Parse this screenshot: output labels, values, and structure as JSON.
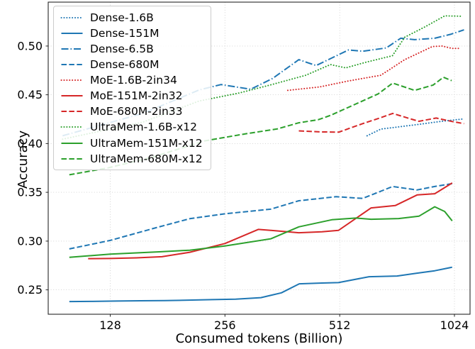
{
  "chart_data": {
    "type": "line",
    "title": "",
    "xlabel": "Consumed tokens (Billion)",
    "ylabel": "Accuracy",
    "x_scale": "log2",
    "x_unit": "Billion tokens",
    "xlim": [
      88,
      1125
    ],
    "ylim": [
      0.225,
      0.545
    ],
    "x_ticks": [
      128,
      256,
      512,
      1024
    ],
    "y_ticks": [
      0.25,
      0.3,
      0.35,
      0.4,
      0.45,
      0.5
    ],
    "grid": true,
    "legend_position": "upper left",
    "colors": {
      "blue": "#1f77b4",
      "red": "#d62728",
      "green": "#2ca02c"
    },
    "series": [
      {
        "name": "Dense-1.6B",
        "color": "blue",
        "style": "dotted",
        "points": [
          [
            604,
            0.408
          ],
          [
            656,
            0.4148
          ],
          [
            826,
            0.4197
          ],
          [
            948,
            0.4228
          ],
          [
            1085,
            0.4253
          ]
        ]
      },
      {
        "name": "Dense-151M",
        "color": "blue",
        "style": "solid",
        "points": [
          [
            100,
            0.238
          ],
          [
            115,
            0.2382
          ],
          [
            133,
            0.2385
          ],
          [
            154,
            0.2388
          ],
          [
            178,
            0.239
          ],
          [
            205,
            0.2395
          ],
          [
            237,
            0.24
          ],
          [
            273,
            0.2405
          ],
          [
            318,
            0.242
          ],
          [
            360,
            0.247
          ],
          [
            401,
            0.2562
          ],
          [
            460,
            0.257
          ],
          [
            508,
            0.2574
          ],
          [
            611,
            0.2635
          ],
          [
            724,
            0.2642
          ],
          [
            813,
            0.267
          ],
          [
            909,
            0.2696
          ],
          [
            1010,
            0.2732
          ]
        ]
      },
      {
        "name": "Dense-6.5B",
        "color": "blue",
        "style": "dashdot",
        "points": [
          [
            96,
            0.408
          ],
          [
            156,
            0.431
          ],
          [
            219,
            0.455
          ],
          [
            250,
            0.4605
          ],
          [
            299,
            0.4557
          ],
          [
            341,
            0.4667
          ],
          [
            400,
            0.486
          ],
          [
            444,
            0.48
          ],
          [
            540,
            0.496
          ],
          [
            588,
            0.4947
          ],
          [
            678,
            0.498
          ],
          [
            740,
            0.508
          ],
          [
            805,
            0.5065
          ],
          [
            909,
            0.508
          ],
          [
            1000,
            0.512
          ],
          [
            1085,
            0.5166
          ]
        ]
      },
      {
        "name": "Dense-680M",
        "color": "blue",
        "style": "dashed",
        "points": [
          [
            100,
            0.292
          ],
          [
            128,
            0.3007
          ],
          [
            172,
            0.3146
          ],
          [
            207,
            0.323
          ],
          [
            256,
            0.328
          ],
          [
            338,
            0.3328
          ],
          [
            400,
            0.3414
          ],
          [
            501,
            0.3455
          ],
          [
            588,
            0.3438
          ],
          [
            705,
            0.356
          ],
          [
            816,
            0.3524
          ],
          [
            909,
            0.356
          ],
          [
            1010,
            0.3589
          ]
        ]
      },
      {
        "name": "MoE-1.6B-2in34",
        "color": "red",
        "style": "dotted",
        "points": [
          [
            374,
            0.4545
          ],
          [
            453,
            0.458
          ],
          [
            540,
            0.4642
          ],
          [
            656,
            0.47
          ],
          [
            758,
            0.486
          ],
          [
            896,
            0.4995
          ],
          [
            950,
            0.5
          ],
          [
            1010,
            0.4975
          ],
          [
            1064,
            0.4975
          ]
        ]
      },
      {
        "name": "MoE-151M-2in32",
        "color": "red",
        "style": "solid",
        "points": [
          [
            112,
            0.282
          ],
          [
            128,
            0.2822
          ],
          [
            150,
            0.2828
          ],
          [
            175,
            0.284
          ],
          [
            207,
            0.2886
          ],
          [
            256,
            0.2975
          ],
          [
            313,
            0.312
          ],
          [
            338,
            0.311
          ],
          [
            400,
            0.3086
          ],
          [
            460,
            0.3095
          ],
          [
            508,
            0.311
          ],
          [
            619,
            0.334
          ],
          [
            716,
            0.3364
          ],
          [
            818,
            0.3474
          ],
          [
            909,
            0.3486
          ],
          [
            1010,
            0.3596
          ]
        ]
      },
      {
        "name": "MoE-680M-2in33",
        "color": "red",
        "style": "dashed",
        "points": [
          [
            400,
            0.413
          ],
          [
            455,
            0.412
          ],
          [
            509,
            0.4117
          ],
          [
            588,
            0.4204
          ],
          [
            650,
            0.426
          ],
          [
            705,
            0.4309
          ],
          [
            790,
            0.425
          ],
          [
            826,
            0.4228
          ],
          [
            917,
            0.4262
          ],
          [
            1010,
            0.4226
          ],
          [
            1085,
            0.4204
          ]
        ]
      },
      {
        "name": "UltraMem-1.6B-x12",
        "color": "green",
        "style": "dotted",
        "points": [
          [
            96,
            0.4045
          ],
          [
            156,
            0.422
          ],
          [
            219,
            0.4436
          ],
          [
            280,
            0.452
          ],
          [
            336,
            0.46
          ],
          [
            417,
            0.47
          ],
          [
            484,
            0.481
          ],
          [
            531,
            0.4776
          ],
          [
            594,
            0.483
          ],
          [
            704,
            0.49
          ],
          [
            758,
            0.509
          ],
          [
            860,
            0.52
          ],
          [
            966,
            0.531
          ],
          [
            1064,
            0.5305
          ]
        ]
      },
      {
        "name": "UltraMem-151M-x12",
        "color": "green",
        "style": "solid",
        "points": [
          [
            100,
            0.2834
          ],
          [
            128,
            0.2866
          ],
          [
            172,
            0.289
          ],
          [
            207,
            0.2907
          ],
          [
            256,
            0.295
          ],
          [
            338,
            0.3024
          ],
          [
            400,
            0.3146
          ],
          [
            488,
            0.3219
          ],
          [
            565,
            0.3236
          ],
          [
            619,
            0.3224
          ],
          [
            731,
            0.3231
          ],
          [
            826,
            0.3255
          ],
          [
            909,
            0.3352
          ],
          [
            965,
            0.3304
          ],
          [
            1010,
            0.3207
          ]
        ]
      },
      {
        "name": "UltraMem-680M-x12",
        "color": "green",
        "style": "dashed",
        "points": [
          [
            100,
            0.368
          ],
          [
            126,
            0.375
          ],
          [
            165,
            0.386
          ],
          [
            226,
            0.4027
          ],
          [
            290,
            0.41
          ],
          [
            351,
            0.415
          ],
          [
            400,
            0.4213
          ],
          [
            450,
            0.4245
          ],
          [
            485,
            0.429
          ],
          [
            560,
            0.44
          ],
          [
            646,
            0.451
          ],
          [
            705,
            0.462
          ],
          [
            805,
            0.4545
          ],
          [
            900,
            0.46
          ],
          [
            958,
            0.468
          ],
          [
            1007,
            0.4645
          ]
        ]
      }
    ]
  }
}
